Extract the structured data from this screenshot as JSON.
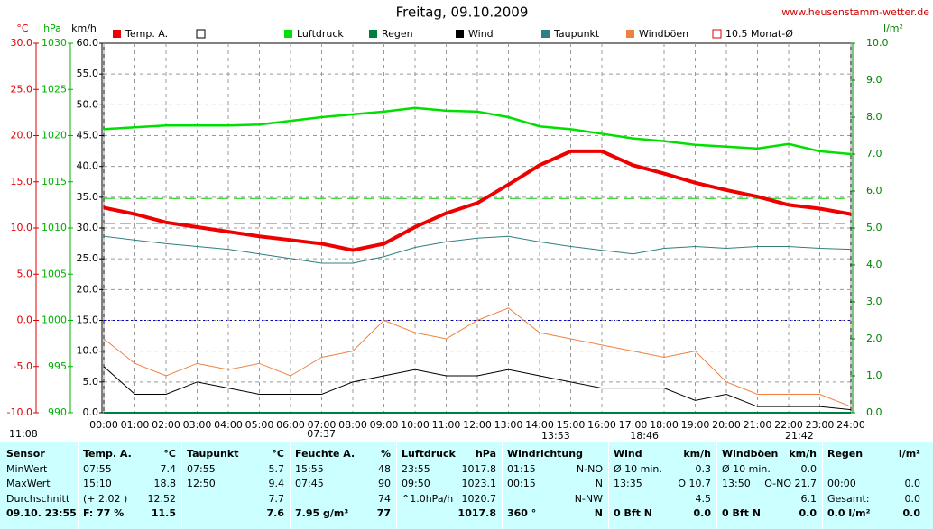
{
  "chart_data": {
    "type": "line",
    "title": "Freitag, 09.10.2009",
    "source": "www.heusenstamm-wetter.de",
    "xlim": [
      0,
      24
    ],
    "xticks": [
      {
        "value": 0,
        "label": "00:00"
      },
      {
        "value": 1,
        "label": "01:00"
      },
      {
        "value": 2,
        "label": "02:00"
      },
      {
        "value": 3,
        "label": "03:00"
      },
      {
        "value": 4,
        "label": "04:00"
      },
      {
        "value": 5,
        "label": "05:00"
      },
      {
        "value": 6,
        "label": "06:00"
      },
      {
        "value": 7,
        "label": "07:00"
      },
      {
        "value": 8,
        "label": "08:00"
      },
      {
        "value": 9,
        "label": "09:00"
      },
      {
        "value": 10,
        "label": "10:00"
      },
      {
        "value": 11,
        "label": "11:00"
      },
      {
        "value": 12,
        "label": "12:00"
      },
      {
        "value": 13,
        "label": "13:00"
      },
      {
        "value": 14,
        "label": "14:00"
      },
      {
        "value": 15,
        "label": "15:00"
      },
      {
        "value": 16,
        "label": "16:00"
      },
      {
        "value": 17,
        "label": "17:00"
      },
      {
        "value": 18,
        "label": "18:00"
      },
      {
        "value": 19,
        "label": "19:00"
      },
      {
        "value": 20,
        "label": "20:00"
      },
      {
        "value": 21,
        "label": "21:00"
      },
      {
        "value": 22,
        "label": "22:00"
      },
      {
        "value": 23,
        "label": "23:00"
      },
      {
        "value": 24,
        "label": "24:00"
      }
    ],
    "x": [
      0,
      1,
      2,
      3,
      4,
      5,
      6,
      7,
      8,
      9,
      10,
      11,
      12,
      13,
      14,
      15,
      16,
      17,
      18,
      19,
      20,
      21,
      22,
      23,
      24
    ],
    "yaxes": [
      {
        "label": "°C",
        "color": "#e00000",
        "lim": [
          -10,
          30
        ],
        "ticks": [
          {
            "value": -10,
            "label": "-10.0"
          },
          {
            "value": -5,
            "label": "-5.0"
          },
          {
            "value": 0,
            "label": "0.0"
          },
          {
            "value": 5,
            "label": "5.0"
          },
          {
            "value": 10,
            "label": "10.0"
          },
          {
            "value": 15,
            "label": "15.0"
          },
          {
            "value": 20,
            "label": "20.0"
          },
          {
            "value": 25,
            "label": "25.0"
          },
          {
            "value": 30,
            "label": "30.0"
          }
        ]
      },
      {
        "label": "hPa",
        "color": "#00b000",
        "lim": [
          990,
          1030
        ],
        "ticks": [
          990,
          995,
          1000,
          1005,
          1010,
          1015,
          1020,
          1025,
          1030
        ]
      },
      {
        "label": "km/h",
        "color": "#000000",
        "lim": [
          0,
          60
        ],
        "ticks": [
          {
            "value": 0,
            "label": "0.0"
          },
          {
            "value": 5,
            "label": "5.0"
          },
          {
            "value": 10,
            "label": "10.0"
          },
          {
            "value": 15,
            "label": "15.0"
          },
          {
            "value": 20,
            "label": "20.0"
          },
          {
            "value": 25,
            "label": "25.0"
          },
          {
            "value": 30,
            "label": "30.0"
          },
          {
            "value": 35,
            "label": "35.0"
          },
          {
            "value": 40,
            "label": "40.0"
          },
          {
            "value": 45,
            "label": "45.0"
          },
          {
            "value": 50,
            "label": "50.0"
          },
          {
            "value": 55,
            "label": "55.0"
          },
          {
            "value": 60,
            "label": "60.0"
          }
        ],
        "grid": true
      },
      {
        "label": "l/m²",
        "color": "#008000",
        "lim": [
          0,
          10
        ],
        "ticks": [
          {
            "value": 0,
            "label": "0.0"
          },
          {
            "value": 1,
            "label": "1.0"
          },
          {
            "value": 2,
            "label": "2.0"
          },
          {
            "value": 3,
            "label": "3.0"
          },
          {
            "value": 4,
            "label": "4.0"
          },
          {
            "value": 5,
            "label": "5.0"
          },
          {
            "value": 6,
            "label": "6.0"
          },
          {
            "value": 7,
            "label": "7.0"
          },
          {
            "value": 8,
            "label": "8.0"
          },
          {
            "value": 9,
            "label": "9.0"
          },
          {
            "value": 10,
            "label": "10.0"
          }
        ]
      }
    ],
    "series": [
      {
        "name": "Temp. A.",
        "color": "#ee0000",
        "axis": 0,
        "width": 4,
        "values": [
          12.2,
          11.5,
          10.6,
          10.1,
          9.6,
          9.1,
          8.7,
          8.3,
          7.6,
          8.3,
          10.1,
          11.6,
          12.7,
          14.7,
          16.8,
          18.3,
          18.3,
          16.8,
          15.9,
          14.9,
          14.1,
          13.4,
          12.5,
          12.1,
          11.5
        ]
      },
      {
        "name": "Luftdruck",
        "color": "#00e000",
        "axis": 1,
        "width": 2.5,
        "values": [
          1020.7,
          1020.9,
          1021.1,
          1021.1,
          1021.1,
          1021.2,
          1021.6,
          1022.0,
          1022.3,
          1022.6,
          1023.0,
          1022.7,
          1022.6,
          1022.0,
          1021.0,
          1020.7,
          1020.2,
          1019.7,
          1019.4,
          1019.0,
          1018.8,
          1018.6,
          1019.1,
          1018.3,
          1018.0
        ]
      },
      {
        "name": "Regen",
        "color": "#008040",
        "axis": 3,
        "width": 2,
        "values": [
          0,
          0,
          0,
          0,
          0,
          0,
          0,
          0,
          0,
          0,
          0,
          0,
          0,
          0,
          0,
          0,
          0,
          0,
          0,
          0,
          0,
          0,
          0,
          0,
          0
        ]
      },
      {
        "name": "Wind",
        "color": "#000000",
        "axis": 2,
        "width": 1,
        "values": [
          7.5,
          3,
          3,
          5,
          4,
          3,
          3,
          3,
          5,
          6,
          7,
          6,
          6,
          7,
          6,
          5,
          4,
          4,
          4,
          2,
          3,
          1,
          1,
          1,
          0.5
        ]
      },
      {
        "name": "Taupunkt",
        "color": "#2f7f7f",
        "axis": 0,
        "width": 1,
        "values": [
          9.1,
          8.7,
          8.3,
          8.0,
          7.7,
          7.2,
          6.7,
          6.2,
          6.2,
          6.9,
          7.9,
          8.5,
          8.9,
          9.1,
          8.5,
          8.0,
          7.6,
          7.2,
          7.8,
          8.0,
          7.8,
          8.0,
          8.0,
          7.8,
          7.7
        ]
      },
      {
        "name": "Windböen",
        "color": "#f08040",
        "axis": 2,
        "width": 1,
        "values": [
          12,
          8,
          6,
          8,
          7,
          8,
          6,
          9,
          10,
          15,
          13,
          12,
          15,
          17,
          13,
          12,
          11,
          10,
          9,
          10,
          5,
          3,
          3,
          3,
          1
        ]
      }
    ],
    "reference_lines": [
      {
        "name": "10.5 Monat-Ø",
        "axis": 0,
        "value": 10.5,
        "color": "#e00000",
        "dash": "12,6"
      },
      {
        "axis": 1,
        "value": 1013.2,
        "color": "#00d000",
        "dash": "12,6"
      },
      {
        "axis": 0,
        "value": 0,
        "color": "#0000cc",
        "dash": "2,3"
      }
    ],
    "markers": [
      "11:08",
      "07:37",
      "13:53",
      "18:46",
      "21:42"
    ]
  },
  "table": {
    "header": [
      [
        "Sensor"
      ],
      [
        "Temp. A.",
        "°C"
      ],
      [
        "Taupunkt",
        "°C"
      ],
      [
        "Feuchte A.",
        "%"
      ],
      [
        "Luftdruck",
        "hPa"
      ],
      [
        "Windrichtung"
      ],
      [
        "Wind",
        "km/h"
      ],
      [
        "Windböen",
        "km/h"
      ],
      [
        "Regen",
        "l/m²"
      ]
    ],
    "rows": [
      [
        [
          "MinWert"
        ],
        [
          "07:55",
          "7.4"
        ],
        [
          "07:55",
          "5.7"
        ],
        [
          "15:55",
          "48"
        ],
        [
          "23:55",
          "1017.8"
        ],
        [
          "01:15",
          "N-NO"
        ],
        [
          "Ø 10 min.",
          "0.3"
        ],
        [
          "Ø 10 min.",
          "0.0"
        ],
        []
      ],
      [
        [
          "MaxWert"
        ],
        [
          "15:10",
          "18.8"
        ],
        [
          "12:50",
          "9.4"
        ],
        [
          "07:45",
          "90"
        ],
        [
          "09:50",
          "1023.1"
        ],
        [
          "00:15",
          "N"
        ],
        [
          "13:35",
          "O 10.7"
        ],
        [
          "13:50",
          "O-NO 21.7"
        ],
        [
          "00:00",
          "0.0"
        ]
      ],
      [
        [
          "Durchschnitt"
        ],
        [
          "(+ 2.02 )",
          "12.52"
        ],
        [
          "7.7"
        ],
        [
          "74"
        ],
        [
          "^1.0hPa/h",
          "1020.7"
        ],
        [
          "N-NW"
        ],
        [
          "4.5"
        ],
        [
          "6.1"
        ],
        [
          "Gesamt:",
          "0.0"
        ]
      ],
      [
        [
          "09.10. 23:55"
        ],
        [
          "F: 77 %",
          "11.5"
        ],
        [
          "7.6"
        ],
        [
          "7.95 g/m³",
          "77"
        ],
        [
          "1017.8"
        ],
        [
          "360 °",
          "N"
        ],
        [
          "0 Bft N",
          "0.0"
        ],
        [
          "0 Bft N",
          "0.0"
        ],
        [
          "0.0 l/m²",
          "0.0"
        ]
      ]
    ]
  }
}
